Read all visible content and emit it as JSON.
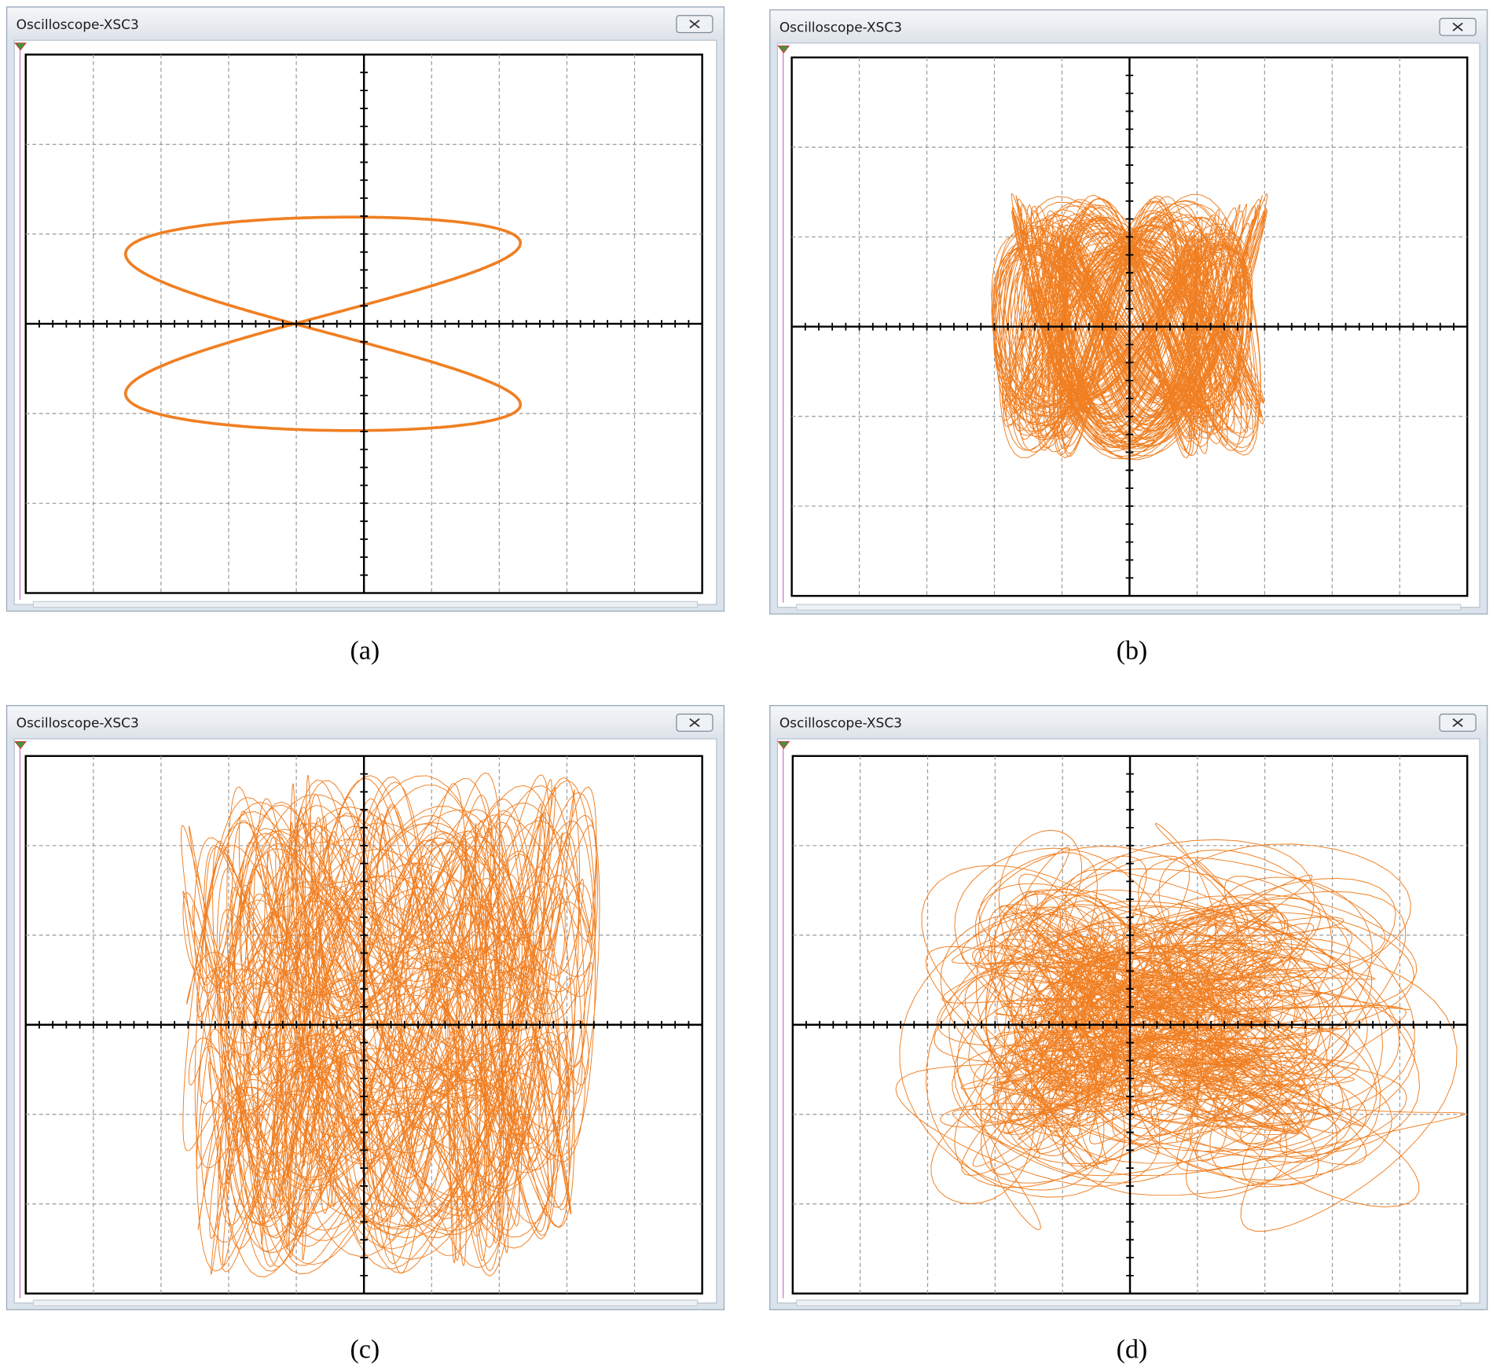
{
  "panels": [
    {
      "window_title": "Oscilloscope-XSC3",
      "caption": "(a)"
    },
    {
      "window_title": "Oscilloscope-XSC3",
      "caption": "(b)"
    },
    {
      "window_title": "Oscilloscope-XSC3",
      "caption": "(c)"
    },
    {
      "window_title": "Oscilloscope-XSC3",
      "caption": "(d)"
    }
  ]
}
